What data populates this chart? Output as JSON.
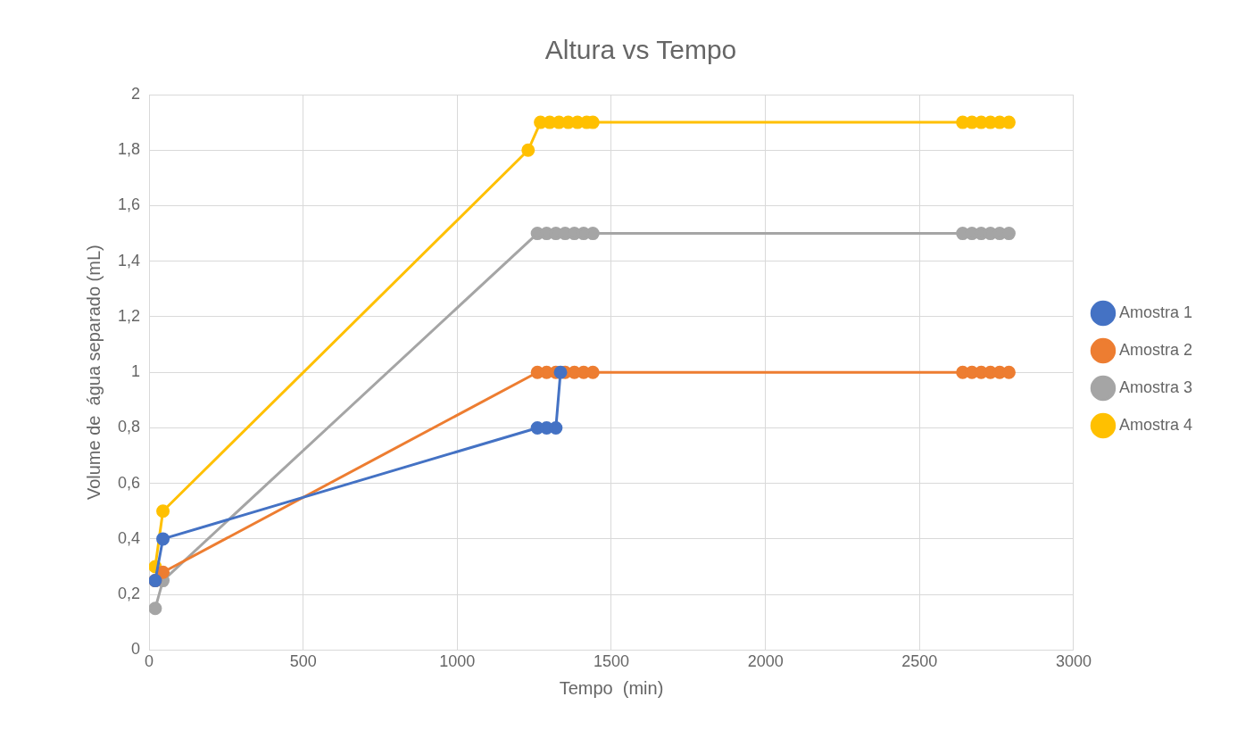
{
  "chart_data": {
    "type": "line",
    "title": "Altura vs Tempo",
    "xlabel": "Tempo  (min)",
    "ylabel": "Volume de  água separado (mL)",
    "xlim": [
      0,
      3000
    ],
    "xticks": [
      0,
      500,
      1000,
      1500,
      2000,
      2500,
      3000
    ],
    "ylim": [
      0,
      2
    ],
    "yticks": [
      0,
      {
        "value": 0.2,
        "label": "0,2"
      },
      {
        "value": 0.4,
        "label": "0,4"
      },
      {
        "value": 0.6,
        "label": "0,6"
      },
      {
        "value": 0.8,
        "label": "0,8"
      },
      1,
      {
        "value": 1.2,
        "label": "1,2"
      },
      {
        "value": 1.4,
        "label": "1,4"
      },
      {
        "value": 1.6,
        "label": "1,6"
      },
      {
        "value": 1.8,
        "label": "1,8"
      },
      2
    ],
    "grid": true,
    "legend": "right",
    "marker": "circle",
    "line_style": "solid",
    "series": [
      {
        "name": "Amostra 1",
        "color": "#4472c4",
        "x": [
          20,
          45,
          1260,
          1290,
          1320,
          1335
        ],
        "values": [
          0.25,
          0.4,
          0.8,
          0.8,
          0.8,
          1.0
        ]
      },
      {
        "name": "Amostra 2",
        "color": "#ed7d31",
        "x": [
          20,
          45,
          1260,
          1290,
          1320,
          1350,
          1380,
          1410,
          1440,
          2640,
          2670,
          2700,
          2730,
          2760,
          2790
        ],
        "values": [
          0.25,
          0.28,
          1.0,
          1.0,
          1.0,
          1.0,
          1.0,
          1.0,
          1.0,
          1.0,
          1.0,
          1.0,
          1.0,
          1.0,
          1.0
        ]
      },
      {
        "name": "Amostra 3",
        "color": "#a5a5a5",
        "x": [
          20,
          45,
          1260,
          1290,
          1320,
          1350,
          1380,
          1410,
          1440,
          2640,
          2670,
          2700,
          2730,
          2760,
          2790
        ],
        "values": [
          0.15,
          0.25,
          1.5,
          1.5,
          1.5,
          1.5,
          1.5,
          1.5,
          1.5,
          1.5,
          1.5,
          1.5,
          1.5,
          1.5,
          1.5
        ]
      },
      {
        "name": "Amostra 4",
        "color": "#ffc000",
        "x": [
          20,
          45,
          1230,
          1270,
          1300,
          1330,
          1360,
          1390,
          1420,
          1440,
          2640,
          2670,
          2700,
          2730,
          2760,
          2790
        ],
        "values": [
          0.3,
          0.5,
          1.8,
          1.9,
          1.9,
          1.9,
          1.9,
          1.9,
          1.9,
          1.9,
          1.9,
          1.9,
          1.9,
          1.9,
          1.9,
          1.9
        ]
      }
    ]
  }
}
